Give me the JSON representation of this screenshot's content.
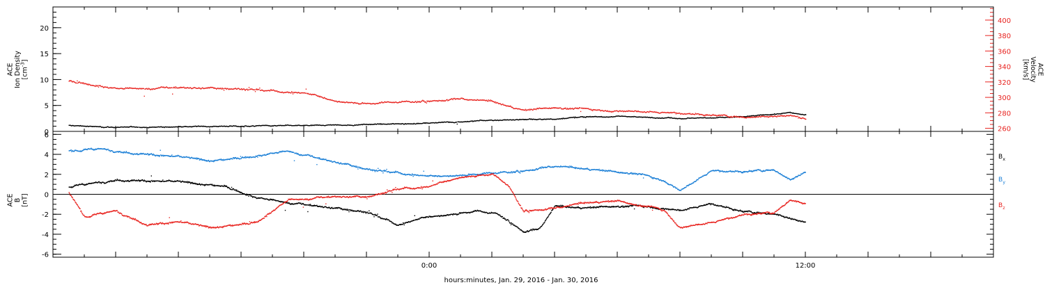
{
  "colors": {
    "black": "#000000",
    "red": "#e8231f",
    "blue": "#1b7fd6"
  },
  "xlabel": "hours:minutes, Jan. 29, 2016 - Jan. 30, 2016",
  "chart_data": [
    {
      "type": "scatter",
      "panel": "plasma",
      "x_unit": "hours relative to Jan. 30, 2016 00:00",
      "xlim": [
        -12,
        18
      ],
      "xticks": [
        {
          "value": 0,
          "label": "0:00"
        },
        {
          "value": 12,
          "label": "12:00"
        }
      ],
      "ylabel_left": [
        "ACE",
        "Ion Density",
        "[cm^-3]"
      ],
      "ylim_left": [
        0,
        24
      ],
      "yticks_left": [
        0,
        5,
        10,
        15,
        20
      ],
      "ylabel_right": [
        "ACE",
        "Velocity",
        "[km/s]"
      ],
      "ylim_right": [
        256,
        417
      ],
      "yticks_right": [
        260,
        280,
        300,
        320,
        340,
        360,
        380,
        400
      ],
      "series": [
        {
          "axis": "left",
          "color": "black",
          "x": [
            -11.5,
            -10,
            -8,
            -6,
            -4,
            -2,
            0,
            2,
            3,
            4,
            4.5,
            6,
            8,
            10,
            11.5,
            12
          ],
          "y": [
            1.2,
            0.9,
            1.0,
            1.1,
            1.2,
            1.4,
            1.7,
            2.2,
            2.4,
            2.5,
            2.8,
            3.0,
            2.6,
            2.9,
            3.7,
            3.2
          ]
        },
        {
          "axis": "right",
          "color": "red",
          "x": [
            -11.5,
            -10,
            -8,
            -6,
            -4,
            -3,
            -2,
            -1,
            0,
            1,
            2,
            3,
            4,
            5,
            6,
            8,
            10,
            11.5,
            12
          ],
          "y": [
            322,
            312,
            313,
            312,
            306,
            296,
            293,
            295,
            296,
            298,
            295,
            284,
            288,
            285,
            283,
            280,
            275,
            277,
            273
          ]
        }
      ]
    },
    {
      "type": "scatter",
      "panel": "magnetic-field",
      "x_unit": "hours relative to Jan. 30, 2016 00:00",
      "xlim": [
        -12,
        18
      ],
      "ylabel": [
        "ACE",
        "B",
        "[nT]"
      ],
      "ylim": [
        -6.3,
        6.3
      ],
      "yticks": [
        -6,
        -4,
        -2,
        0,
        2,
        4,
        6
      ],
      "series": [
        {
          "name": "Bx",
          "color": "black",
          "x": [
            -11.5,
            -10,
            -8,
            -6.5,
            -5.5,
            -4,
            -2,
            -1,
            0,
            1.5,
            2.2,
            3,
            3.5,
            4,
            5,
            6,
            7,
            8,
            9,
            10,
            11,
            12
          ],
          "y": [
            0.8,
            1.5,
            1.3,
            0.8,
            -0.3,
            -1.0,
            -1.7,
            -3.0,
            -2.2,
            -1.6,
            -1.9,
            -3.7,
            -3.5,
            -1.2,
            -1.3,
            -1.1,
            -1.2,
            -1.6,
            -0.9,
            -1.7,
            -1.9,
            -2.8
          ]
        },
        {
          "name": "By",
          "color": "blue",
          "x": [
            -11.5,
            -10.5,
            -9.5,
            -8,
            -7,
            -6.5,
            -5.5,
            -4.5,
            -3.5,
            -2,
            -1,
            0,
            1,
            2,
            3,
            4,
            5,
            6,
            6.5,
            7.5,
            8,
            9,
            10,
            11,
            11.5,
            12
          ],
          "y": [
            4.4,
            4.6,
            4.2,
            3.8,
            3.4,
            3.5,
            3.9,
            4.4,
            3.6,
            2.6,
            2.2,
            1.8,
            2.0,
            2.2,
            2.4,
            2.8,
            2.6,
            2.3,
            2.2,
            1.4,
            0.4,
            2.4,
            2.3,
            2.5,
            1.5,
            2.3
          ]
        },
        {
          "name": "Bz",
          "color": "red",
          "x": [
            -11.5,
            -11,
            -10,
            -9,
            -8,
            -7,
            -6,
            -5.5,
            -4.5,
            -3,
            -2,
            -1,
            0,
            1,
            2,
            2.5,
            3,
            4,
            5,
            6,
            7,
            7.5,
            8,
            9,
            10,
            11,
            11.5,
            12
          ],
          "y": [
            0.2,
            -2.2,
            -1.6,
            -3.0,
            -2.7,
            -3.3,
            -3.0,
            -2.7,
            -0.5,
            -0.2,
            -0.2,
            0.6,
            0.8,
            1.8,
            2.1,
            1.0,
            -1.6,
            -1.4,
            -0.8,
            -0.6,
            -1.2,
            -1.6,
            -3.3,
            -2.8,
            -2.0,
            -1.8,
            -0.5,
            -0.9
          ]
        }
      ]
    }
  ]
}
